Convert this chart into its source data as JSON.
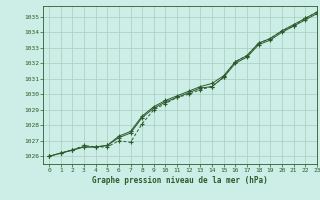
{
  "title": "Graphe pression niveau de la mer (hPa)",
  "bg_color": "#cceee6",
  "grid_color": "#aaccbb",
  "line_color": "#2d5a2d",
  "xlim": [
    -0.5,
    23
  ],
  "ylim": [
    1025.5,
    1035.7
  ],
  "yticks": [
    1026,
    1027,
    1028,
    1029,
    1030,
    1031,
    1032,
    1033,
    1034,
    1035
  ],
  "xticks": [
    0,
    1,
    2,
    3,
    4,
    5,
    6,
    7,
    8,
    9,
    10,
    11,
    12,
    13,
    14,
    15,
    16,
    17,
    18,
    19,
    20,
    21,
    22,
    23
  ],
  "hours": [
    0,
    1,
    2,
    3,
    4,
    5,
    6,
    7,
    8,
    9,
    10,
    11,
    12,
    13,
    14,
    15,
    16,
    17,
    18,
    19,
    20,
    21,
    22,
    23
  ],
  "series1": [
    1026.0,
    1026.2,
    1026.4,
    1026.6,
    1026.6,
    1026.7,
    1027.2,
    1027.5,
    1028.5,
    1029.1,
    1029.5,
    1029.8,
    1030.1,
    1030.4,
    1030.5,
    1031.1,
    1032.0,
    1032.4,
    1033.2,
    1033.5,
    1034.0,
    1034.4,
    1034.8,
    1035.2
  ],
  "series2": [
    1026.0,
    1026.2,
    1026.4,
    1026.6,
    1026.6,
    1026.7,
    1027.3,
    1027.6,
    1028.6,
    1029.2,
    1029.6,
    1029.9,
    1030.2,
    1030.5,
    1030.7,
    1031.2,
    1032.1,
    1032.5,
    1033.3,
    1033.6,
    1034.1,
    1034.5,
    1034.9,
    1035.3
  ],
  "series3": [
    1026.0,
    1026.2,
    1026.4,
    1026.7,
    1026.6,
    1026.6,
    1027.0,
    1026.9,
    1028.1,
    1029.0,
    1029.4,
    1029.8,
    1030.0,
    1030.3,
    1030.5,
    1031.1,
    1032.1,
    1032.5,
    1033.3,
    1033.6,
    1034.1,
    1034.4,
    1034.9,
    1035.3
  ]
}
